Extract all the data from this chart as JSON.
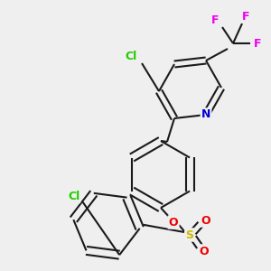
{
  "background_color": "#efefef",
  "bond_color": "#1a1a1a",
  "atom_colors": {
    "N": "#0000dd",
    "Cl": "#22cc00",
    "F": "#ee00ee",
    "S": "#ccbb00",
    "O": "#ee0000",
    "C": "#1a1a1a"
  },
  "figsize": [
    3.0,
    3.0
  ],
  "dpi": 100,
  "lw": 1.5
}
